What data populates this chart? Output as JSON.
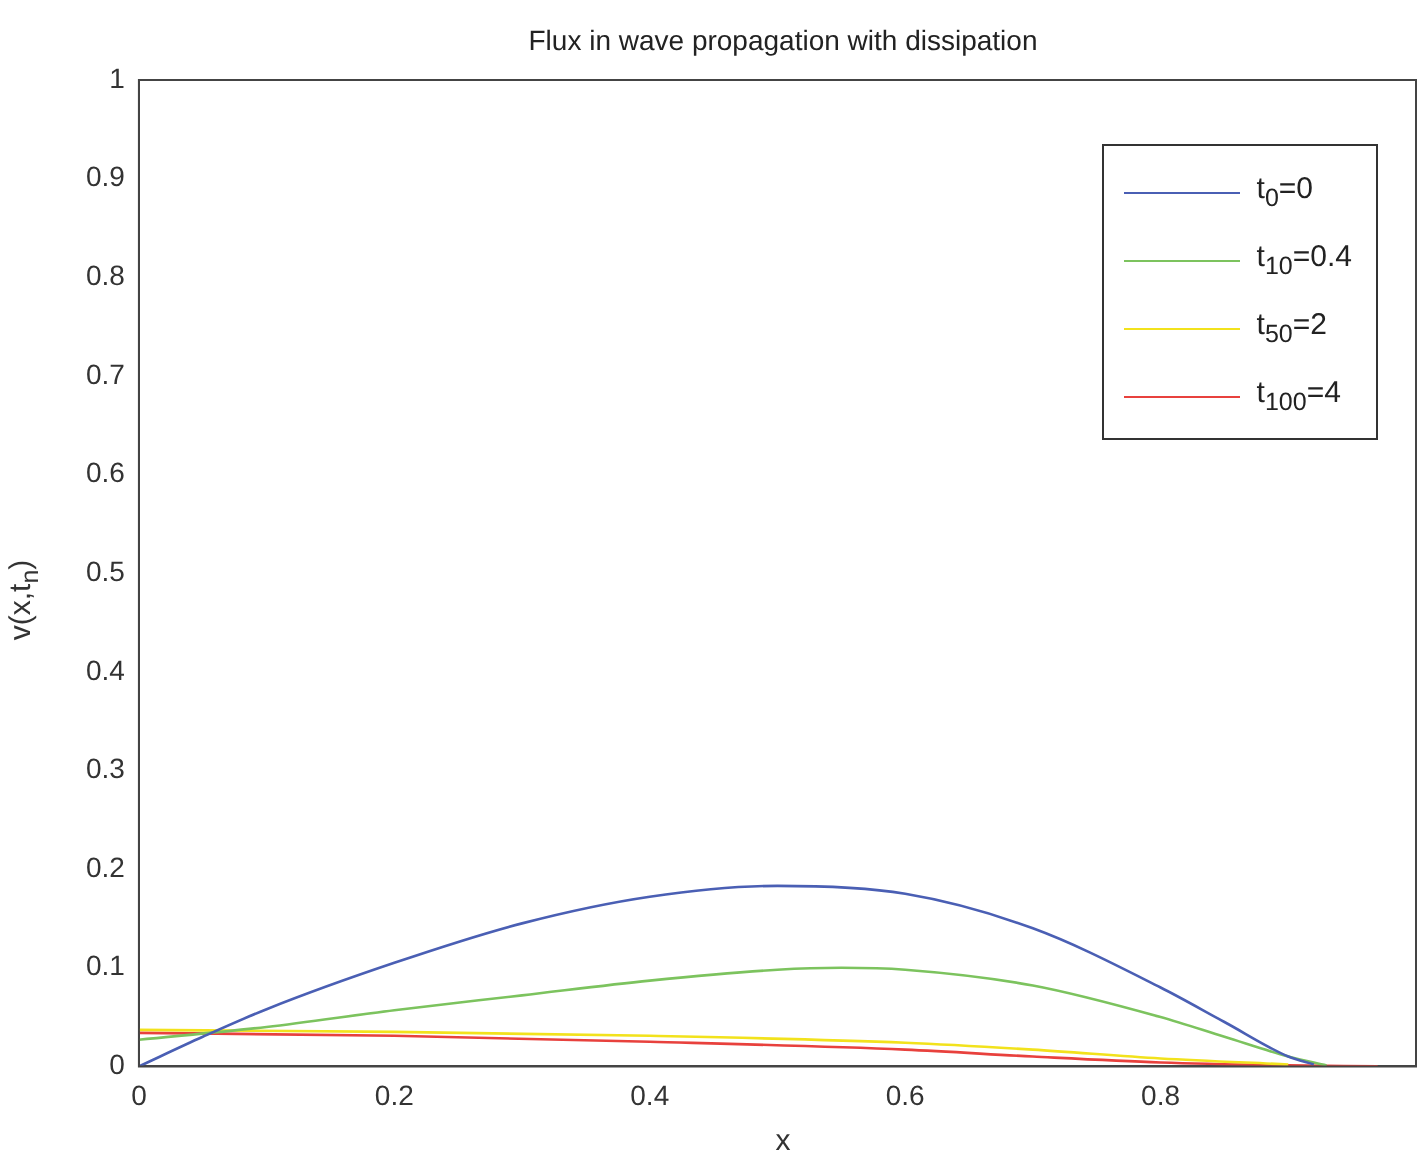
{
  "chart_data": {
    "type": "line",
    "title": "Flux in wave propagation with dissipation",
    "xlabel": "x",
    "ylabel": "v(x,t$_{n}$)",
    "xlim": [
      0,
      1
    ],
    "ylim": [
      0,
      1
    ],
    "xticks": [
      0,
      0.2,
      0.4,
      0.6,
      0.8,
      {
        "value": 1,
        "label": null
      }
    ],
    "yticks": [
      0,
      0.1,
      0.2,
      0.3,
      0.4,
      0.5,
      0.6,
      0.7,
      0.8,
      0.9,
      1
    ],
    "legend": "top right",
    "marker": "none",
    "line_style": "solid",
    "series": [
      {
        "name": "t$_{0}$=0",
        "color": "#4a5fb4",
        "x": [
          0,
          0.05,
          0.1,
          0.2,
          0.3,
          0.4,
          0.5,
          0.6,
          0.7,
          0.8,
          0.85,
          0.9,
          0.92
        ],
        "values": [
          0,
          0.03,
          0.058,
          0.105,
          0.145,
          0.172,
          0.183,
          0.175,
          0.14,
          0.08,
          0.045,
          0.01,
          0.002
        ]
      },
      {
        "name": "t$_{10}$=0.4",
        "color": "#7cc35e",
        "x": [
          0,
          0.1,
          0.2,
          0.3,
          0.4,
          0.5,
          0.55,
          0.6,
          0.7,
          0.8,
          0.85,
          0.9,
          0.93
        ],
        "values": [
          0.027,
          0.04,
          0.057,
          0.072,
          0.087,
          0.098,
          0.1,
          0.098,
          0.082,
          0.05,
          0.03,
          0.01,
          0.001
        ]
      },
      {
        "name": "t$_{50}$=2",
        "color": "#f2e21c",
        "x": [
          0,
          0.2,
          0.4,
          0.6,
          0.7,
          0.8,
          0.9
        ],
        "values": [
          0.037,
          0.035,
          0.031,
          0.024,
          0.017,
          0.008,
          0.002
        ]
      },
      {
        "name": "t$_{100}$=4",
        "color": "#e8413d",
        "x": [
          0,
          0.2,
          0.4,
          0.6,
          0.7,
          0.8,
          0.9,
          0.97
        ],
        "values": [
          0.034,
          0.031,
          0.025,
          0.017,
          0.01,
          0.004,
          0.001,
          0
        ]
      }
    ]
  }
}
